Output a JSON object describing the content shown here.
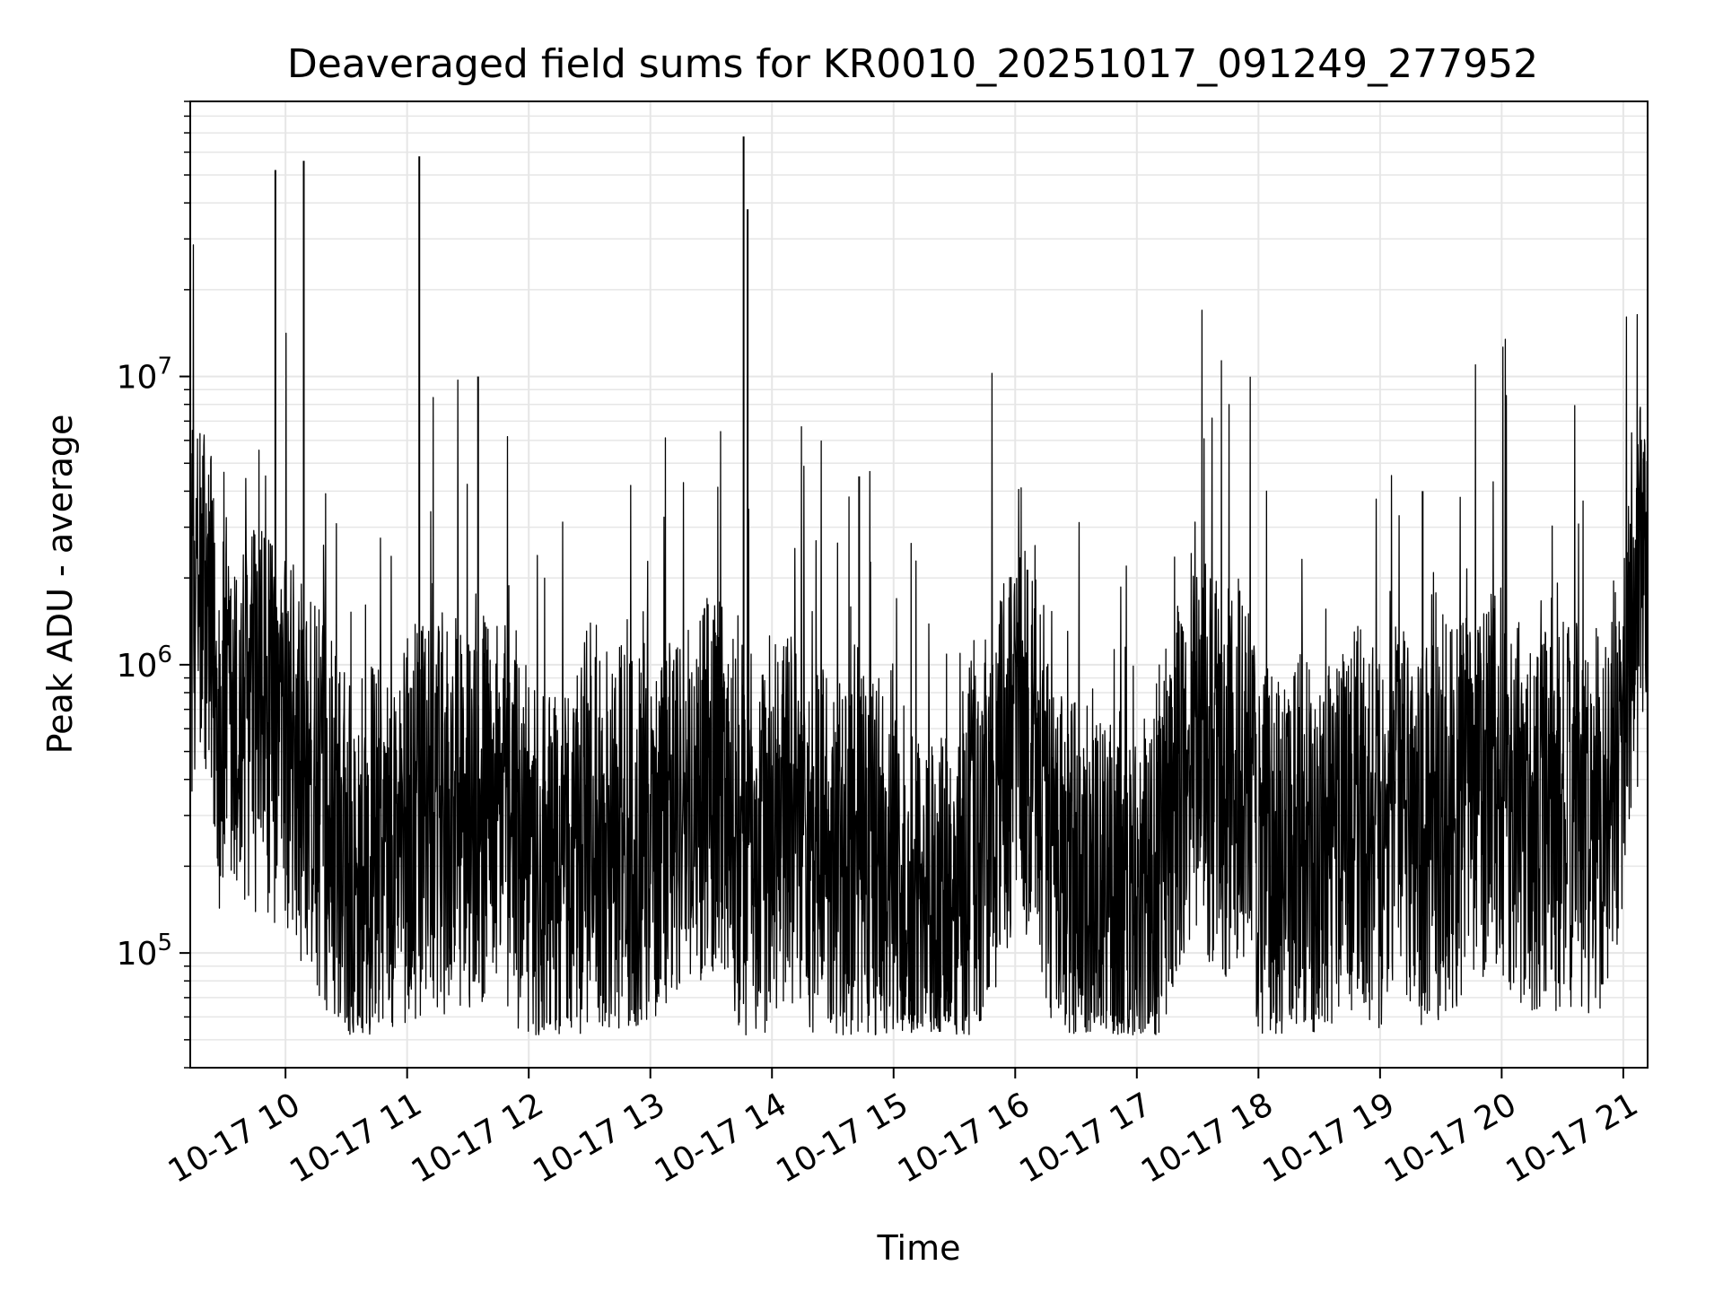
{
  "chart_data": {
    "type": "line",
    "title": "Deaveraged field sums for KR0010_20251017_091249_277952",
    "xlabel": "Time",
    "ylabel": "Peak ADU - average",
    "yscale": "log",
    "ylim": [
      40000,
      90000000
    ],
    "xlim": [
      "2025-10-17 09:13",
      "2025-10-17 21:12"
    ],
    "grid": true,
    "x_ticks": [
      {
        "t": "2025-10-17 10:00",
        "label": "10-17 10"
      },
      {
        "t": "2025-10-17 11:00",
        "label": "10-17 11"
      },
      {
        "t": "2025-10-17 12:00",
        "label": "10-17 12"
      },
      {
        "t": "2025-10-17 13:00",
        "label": "10-17 13"
      },
      {
        "t": "2025-10-17 14:00",
        "label": "10-17 14"
      },
      {
        "t": "2025-10-17 15:00",
        "label": "10-17 15"
      },
      {
        "t": "2025-10-17 16:00",
        "label": "10-17 16"
      },
      {
        "t": "2025-10-17 17:00",
        "label": "10-17 17"
      },
      {
        "t": "2025-10-17 18:00",
        "label": "10-17 18"
      },
      {
        "t": "2025-10-17 19:00",
        "label": "10-17 19"
      },
      {
        "t": "2025-10-17 20:00",
        "label": "10-17 20"
      },
      {
        "t": "2025-10-17 21:00",
        "label": "10-17 21"
      }
    ],
    "y_ticks": [
      {
        "value": 100000,
        "base": "10",
        "exp": "5"
      },
      {
        "value": 1000000,
        "base": "10",
        "exp": "6"
      },
      {
        "value": 10000000,
        "base": "10",
        "exp": "7"
      }
    ],
    "line_color": "#000000",
    "grid_color": "#e6e6e6",
    "x": [
      "2025-10-17 09:13",
      "2025-10-17 09:20",
      "2025-10-17 09:28",
      "2025-10-17 09:35",
      "2025-10-17 09:42",
      "2025-10-17 09:50",
      "2025-10-17 09:55",
      "2025-10-17 10:05",
      "2025-10-17 10:15",
      "2025-10-17 10:25",
      "2025-10-17 10:30",
      "2025-10-17 10:40",
      "2025-10-17 10:50",
      "2025-10-17 11:00",
      "2025-10-17 11:10",
      "2025-10-17 11:20",
      "2025-10-17 11:30",
      "2025-10-17 11:40",
      "2025-10-17 11:50",
      "2025-10-17 12:00",
      "2025-10-17 12:10",
      "2025-10-17 12:20",
      "2025-10-17 12:30",
      "2025-10-17 12:40",
      "2025-10-17 12:50",
      "2025-10-17 13:00",
      "2025-10-17 13:10",
      "2025-10-17 13:20",
      "2025-10-17 13:30",
      "2025-10-17 13:40",
      "2025-10-17 13:45",
      "2025-10-17 13:50",
      "2025-10-17 14:00",
      "2025-10-17 14:10",
      "2025-10-17 14:20",
      "2025-10-17 14:30",
      "2025-10-17 14:40",
      "2025-10-17 14:50",
      "2025-10-17 15:00",
      "2025-10-17 15:10",
      "2025-10-17 15:20",
      "2025-10-17 15:30",
      "2025-10-17 15:40",
      "2025-10-17 15:50",
      "2025-10-17 16:00",
      "2025-10-17 16:10",
      "2025-10-17 16:20",
      "2025-10-17 16:30",
      "2025-10-17 16:40",
      "2025-10-17 16:50",
      "2025-10-17 17:00",
      "2025-10-17 17:10",
      "2025-10-17 17:20",
      "2025-10-17 17:30",
      "2025-10-17 17:40",
      "2025-10-17 17:50",
      "2025-10-17 18:00",
      "2025-10-17 18:10",
      "2025-10-17 18:20",
      "2025-10-17 18:30",
      "2025-10-17 18:40",
      "2025-10-17 18:50",
      "2025-10-17 19:00",
      "2025-10-17 19:10",
      "2025-10-17 19:20",
      "2025-10-17 19:30",
      "2025-10-17 19:40",
      "2025-10-17 19:50",
      "2025-10-17 20:00",
      "2025-10-17 20:10",
      "2025-10-17 20:20",
      "2025-10-17 20:30",
      "2025-10-17 20:40",
      "2025-10-17 20:50",
      "2025-10-17 21:00",
      "2025-10-17 21:05",
      "2025-10-17 21:12"
    ],
    "y": [
      1500000,
      1700000,
      600000,
      500000,
      700000,
      600000,
      550000,
      450000,
      350000,
      250000,
      200000,
      220000,
      230000,
      250000,
      300000,
      280000,
      300000,
      330000,
      300000,
      200000,
      170000,
      200000,
      250000,
      260000,
      250000,
      280000,
      300000,
      320000,
      400000,
      300000,
      250000,
      220000,
      250000,
      300000,
      250000,
      180000,
      200000,
      220000,
      200000,
      130000,
      110000,
      140000,
      250000,
      300000,
      600000,
      500000,
      200000,
      160000,
      180000,
      130000,
      120000,
      200000,
      400000,
      600000,
      350000,
      450000,
      250000,
      200000,
      250000,
      180000,
      250000,
      300000,
      250000,
      300000,
      250000,
      280000,
      300000,
      350000,
      400000,
      300000,
      270000,
      300000,
      280000,
      300000,
      600000,
      1600000,
      1800000
    ],
    "spikes": [
      {
        "t": "2025-10-17 09:55",
        "value": 52000000
      },
      {
        "t": "2025-10-17 10:09",
        "value": 56000000
      },
      {
        "t": "2025-10-17 11:06",
        "value": 58000000
      },
      {
        "t": "2025-10-17 11:35",
        "value": 10000000
      },
      {
        "t": "2025-10-17 13:46",
        "value": 68000000
      },
      {
        "t": "2025-10-17 13:48",
        "value": 38000000
      },
      {
        "t": "2025-10-17 19:21",
        "value": 4000000
      },
      {
        "t": "2025-10-17 14:43",
        "value": 4500000
      },
      {
        "t": "2025-10-17 21:10",
        "value": 5200000
      }
    ]
  }
}
